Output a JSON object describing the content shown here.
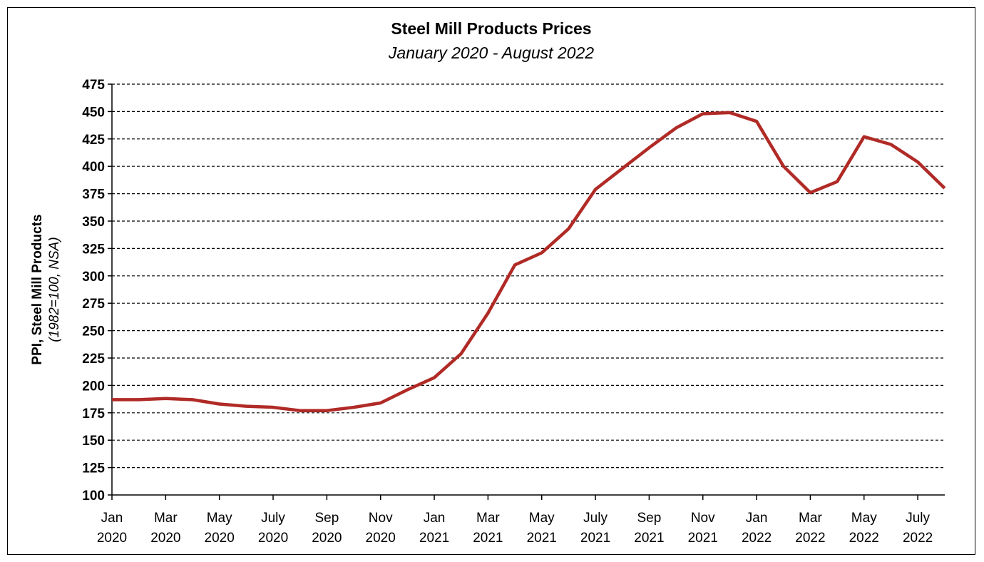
{
  "chart_data": {
    "type": "line",
    "title": "Steel Mill Products Prices",
    "subtitle": "January 2020 - August 2022",
    "ylabel": "PPI, Steel Mill Products",
    "ylabel_sub": "(1982=100, NSA)",
    "xlabel": "",
    "ylim": [
      100,
      475
    ],
    "yticks": [
      100,
      125,
      150,
      175,
      200,
      225,
      250,
      275,
      300,
      325,
      350,
      375,
      400,
      425,
      450,
      475
    ],
    "grid": true,
    "x": [
      "2020-01",
      "2020-02",
      "2020-03",
      "2020-04",
      "2020-05",
      "2020-06",
      "2020-07",
      "2020-08",
      "2020-09",
      "2020-10",
      "2020-11",
      "2020-12",
      "2021-01",
      "2021-02",
      "2021-03",
      "2021-04",
      "2021-05",
      "2021-06",
      "2021-07",
      "2021-08",
      "2021-09",
      "2021-10",
      "2021-11",
      "2021-12",
      "2022-01",
      "2022-02",
      "2022-03",
      "2022-04",
      "2022-05",
      "2022-06",
      "2022-07",
      "2022-08"
    ],
    "xtick_labels": [
      {
        "month": "Jan",
        "year": "2020",
        "index": 0
      },
      {
        "month": "Mar",
        "year": "2020",
        "index": 2
      },
      {
        "month": "May",
        "year": "2020",
        "index": 4
      },
      {
        "month": "July",
        "year": "2020",
        "index": 6
      },
      {
        "month": "Sep",
        "year": "2020",
        "index": 8
      },
      {
        "month": "Nov",
        "year": "2020",
        "index": 10
      },
      {
        "month": "Jan",
        "year": "2021",
        "index": 12
      },
      {
        "month": "Mar",
        "year": "2021",
        "index": 14
      },
      {
        "month": "May",
        "year": "2021",
        "index": 16
      },
      {
        "month": "July",
        "year": "2021",
        "index": 18
      },
      {
        "month": "Sep",
        "year": "2021",
        "index": 20
      },
      {
        "month": "Nov",
        "year": "2021",
        "index": 22
      },
      {
        "month": "Jan",
        "year": "2022",
        "index": 24
      },
      {
        "month": "Mar",
        "year": "2022",
        "index": 26
      },
      {
        "month": "May",
        "year": "2022",
        "index": 28
      },
      {
        "month": "July",
        "year": "2022",
        "index": 30
      }
    ],
    "series": [
      {
        "color": "#b02a26",
        "values": [
          187,
          187,
          188,
          187,
          183,
          181,
          180,
          177,
          177,
          180,
          184,
          196,
          207,
          229,
          266,
          310,
          321,
          343,
          379,
          398,
          417,
          435,
          448,
          449,
          441,
          400,
          376,
          386,
          427,
          420,
          404,
          380
        ]
      }
    ]
  }
}
